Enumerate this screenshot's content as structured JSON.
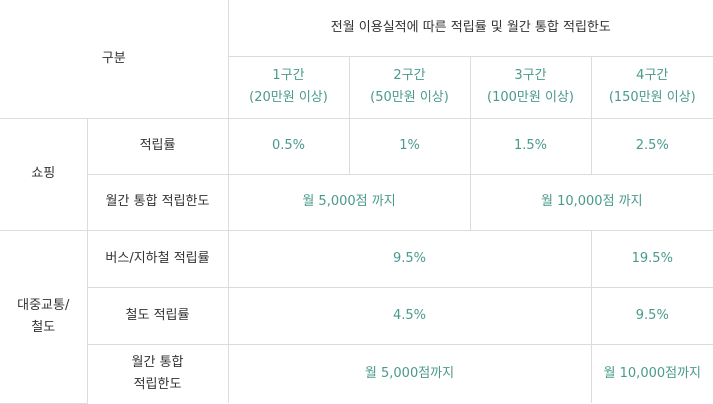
{
  "header": {
    "category": "구분",
    "span_title": "전월 이용실적에 따른 적립률 및 월간 통합 적립한도",
    "tiers": [
      {
        "name": "1구간",
        "condition": "(20만원 이상)"
      },
      {
        "name": "2구간",
        "condition": "(50만원 이상)"
      },
      {
        "name": "3구간",
        "condition": "(100만원 이상)"
      },
      {
        "name": "4구간",
        "condition": "(150만원 이상)"
      }
    ]
  },
  "shopping": {
    "label": "쇼핑",
    "rate_label": "적립률",
    "rates": [
      "0.5%",
      "1%",
      "1.5%",
      "2.5%"
    ],
    "limit_label": "월간 통합 적립한도",
    "limits": [
      "월 5,000점 까지",
      "월 10,000점 까지"
    ]
  },
  "transit": {
    "label_line1": "대중교통/",
    "label_line2": "철도",
    "bus_label": "버스/지하철 적립률",
    "bus_rates": [
      "9.5%",
      "19.5%"
    ],
    "rail_label": "철도 적립률",
    "rail_rates": [
      "4.5%",
      "9.5%"
    ],
    "limit_label_line1": "월간 통합",
    "limit_label_line2": "적립한도",
    "limits": [
      "월 5,000점까지",
      "월 10,000점까지"
    ]
  }
}
